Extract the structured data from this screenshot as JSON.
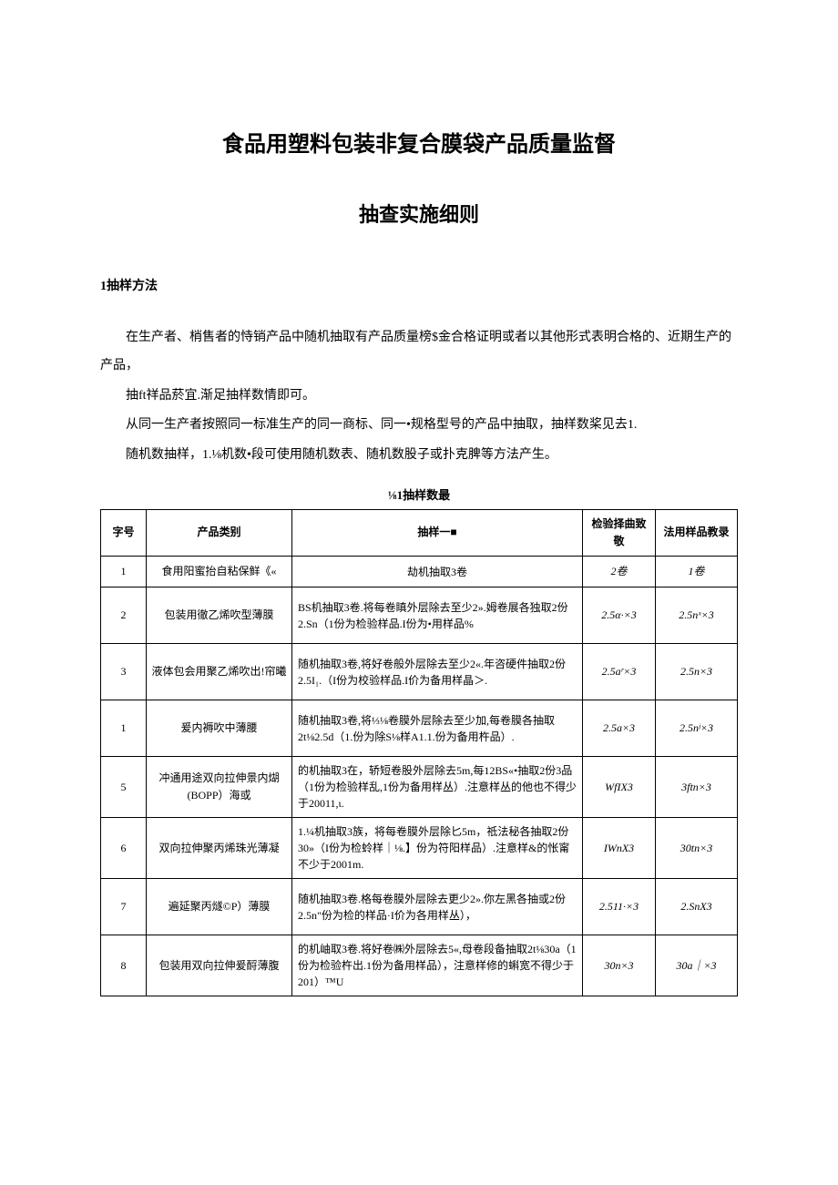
{
  "title": "食品用塑料包装非复合膜袋产品质量监督",
  "subtitle": "抽查实施细则",
  "section_head": "1抽样方法",
  "paras": [
    "在生产者、梢售者的恃销产品中随机抽取有产品质量榜$金合格证明或者以其他形式表明合格的、近期生产的产品，",
    "抽ft祥品菸宜.渐足抽样数情即可。",
    "从同一生产者按照同一标准生产的同一商标、同一•规格型号的产品中抽取，抽样数桨见去1.",
    "随机数抽样，1.⅛机数•段可使用随机数表、随机数股子或扑克脾等方法产生。"
  ],
  "table_caption": "⅛1抽样数最",
  "table": {
    "headers": [
      "字号",
      "产品类别",
      "抽样一■",
      "检验择曲致敬",
      "法用样品教录"
    ],
    "rows": [
      {
        "idx": "1",
        "cat": "食用阳蜜抬自粘保鲜《«",
        "method": "劫机抽取3卷",
        "insp": "2卷",
        "back": "1卷"
      },
      {
        "idx": "2",
        "cat": "包装用徹乙烯吹型薄膜",
        "method": "BS机抽取3卷.将每卷瞋外层除去至少2».姆卷展各独取2份2.Sn（1份为检验样品.I份为•用样品%",
        "insp": "2.5α·×3",
        "back": "2.5nˣ×3"
      },
      {
        "idx": "3",
        "cat": "液体包会用聚乙烯吹出!帘曦",
        "method": "随机抽取3卷,将好卷般外层除去至少2«.年咨硬件抽取2份2.5I₁.（I份为校验样品.I价为备用样晶＞.",
        "insp": "2.5aʳ×3",
        "back": "2.5n×3"
      },
      {
        "idx": "1",
        "cat": "爰内褥吹中薄腰",
        "method": "随机抽取3卷,将⅓⅛卷膜外层除去至少加,每卷膜各抽取2t⅛2.5d（1.份为除S⅛样A1.1.份为备用杵品）.",
        "insp": "2.5a×3",
        "back": "2.5nʲ×3"
      },
      {
        "idx": "5",
        "cat": "冲通用途双向拉伸景内煳(BOPP）海或",
        "method": "的机抽取3在，轿短卷股外层除去5m,每12BS«•抽取2份3品（1份为检验样乱,1份为备用样丛）.注意样丛的他也不得少于20011,ι.",
        "insp": "WfIX3",
        "back": "3ftn×3"
      },
      {
        "idx": "6",
        "cat": "双向拉伸聚丙烯珠光薄凝",
        "method": "1.¼机抽取3族，将每卷膜外层除匕5m，祗法秘各抽取2份30»（I份为检蛉样｜⅛.】份为符阳样品）.注意样&的怅甯不少于2001m.",
        "insp": "IWnX3",
        "back": "30tn×3"
      },
      {
        "idx": "7",
        "cat": "遍延聚丙燧©P）薄膜",
        "method": "随机抽取3卷.格每卷膜外层除去更少2».你左黑各抽或2份2.5n\"份为检的样品·I价为各用样丛），",
        "insp": "2.511·×3",
        "back": "2.SnX3"
      },
      {
        "idx": "8",
        "cat": "包装用双向拉伸爰酹薄腹",
        "method": "的机岫取3卷.将好卷㈱外层除去5«,母卷段备抽取2t⅛30a（1份为检验杵出.1份为备用样品），注意样修的蝌宽不得少于201）™U",
        "insp": "30n×3",
        "back": "30a｜×3"
      }
    ]
  },
  "colors": {
    "text": "#000000",
    "background": "#ffffff",
    "border": "#000000"
  }
}
